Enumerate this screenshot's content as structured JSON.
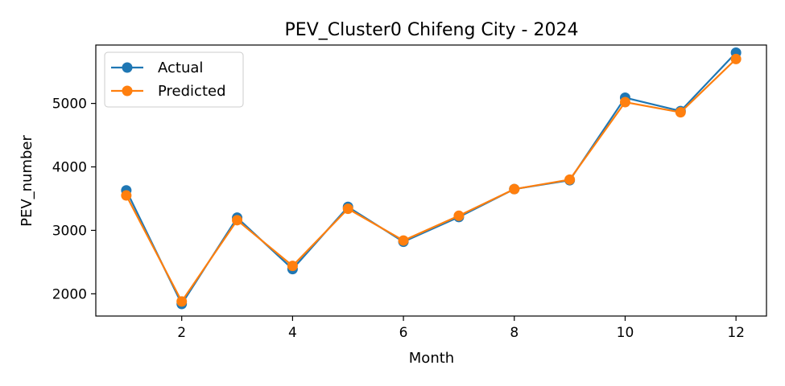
{
  "chart_data": {
    "type": "line",
    "title": "PEV_Cluster0 Chifeng City - 2024",
    "xlabel": "Month",
    "ylabel": "PEV_number",
    "x": [
      1,
      2,
      3,
      4,
      5,
      6,
      7,
      8,
      9,
      10,
      11,
      12
    ],
    "xlim": [
      0.45,
      12.55
    ],
    "ylim": [
      1650,
      5920
    ],
    "xticks": [
      2,
      4,
      6,
      8,
      10,
      12
    ],
    "yticks": [
      2000,
      3000,
      4000,
      5000
    ],
    "grid": false,
    "legend_position": "top-left",
    "series": [
      {
        "name": "Actual",
        "color": "#1f77b4",
        "values": [
          3630,
          1840,
          3200,
          2390,
          3370,
          2820,
          3210,
          3650,
          3790,
          5090,
          4880,
          5800
        ]
      },
      {
        "name": "Predicted",
        "color": "#ff7f0e",
        "values": [
          3550,
          1880,
          3160,
          2440,
          3340,
          2840,
          3230,
          3650,
          3800,
          5020,
          4860,
          5700
        ]
      }
    ]
  }
}
